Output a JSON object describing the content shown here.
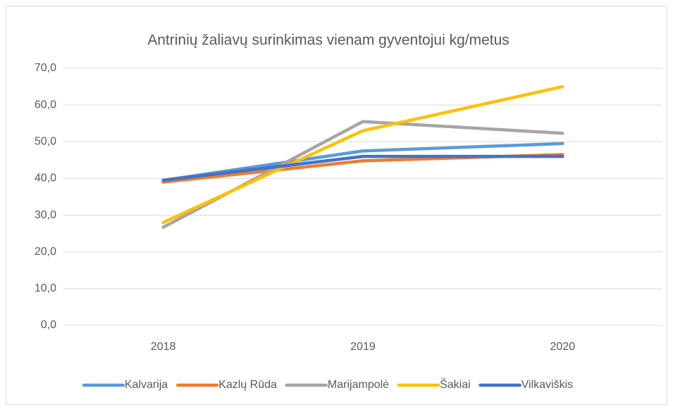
{
  "chart_data": {
    "type": "line",
    "title": "Antrinių žaliavų surinkimas vienam gyventojui kg/metus",
    "categories": [
      "2018",
      "2019",
      "2020"
    ],
    "series": [
      {
        "name": "Kalvarija",
        "color": "#5b9bd5",
        "values": [
          39.5,
          47.5,
          49.5
        ]
      },
      {
        "name": "Kazlų Rūda",
        "color": "#ed7d31",
        "values": [
          39.0,
          44.8,
          46.5
        ]
      },
      {
        "name": "Marijampolė",
        "color": "#a5a5a5",
        "values": [
          26.7,
          55.5,
          52.3
        ]
      },
      {
        "name": "Šakiai",
        "color": "#ffc000",
        "values": [
          28.0,
          53.0,
          65.0
        ]
      },
      {
        "name": "Vilkaviškis",
        "color": "#4472c4",
        "values": [
          39.5,
          46.0,
          46.0
        ]
      }
    ],
    "ylim": [
      0,
      70
    ],
    "yticks": [
      {
        "value": 0,
        "label": "0,0"
      },
      {
        "value": 10,
        "label": "10,0"
      },
      {
        "value": 20,
        "label": "20,0"
      },
      {
        "value": 30,
        "label": "30,0"
      },
      {
        "value": 40,
        "label": "40,0"
      },
      {
        "value": 50,
        "label": "50,0"
      },
      {
        "value": 60,
        "label": "60,0"
      },
      {
        "value": 70,
        "label": "70,0"
      }
    ],
    "grid": true,
    "legend": "bottom"
  }
}
